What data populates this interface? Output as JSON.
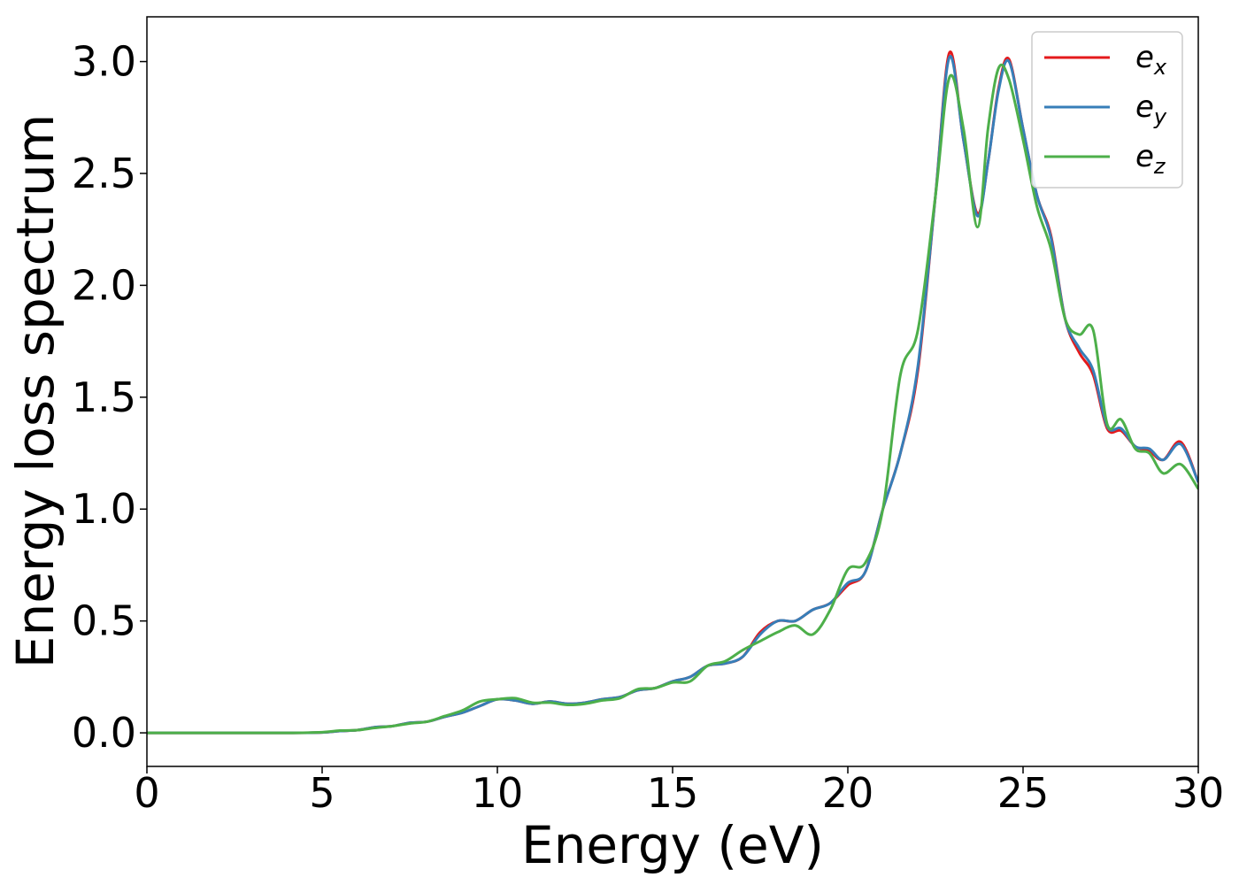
{
  "chart_data": {
    "type": "line",
    "xlabel": "Energy (eV)",
    "ylabel": "Energy loss spectrum",
    "xlim": [
      0,
      30
    ],
    "ylim": [
      -0.15,
      3.2
    ],
    "xticks": [
      0,
      5,
      10,
      15,
      20,
      25,
      30
    ],
    "xtick_labels": [
      "0",
      "5",
      "10",
      "15",
      "20",
      "25",
      "30"
    ],
    "yticks": [
      0.0,
      0.5,
      1.0,
      1.5,
      2.0,
      2.5,
      3.0
    ],
    "ytick_labels": [
      "0.0",
      "0.5",
      "1.0",
      "1.5",
      "2.0",
      "2.5",
      "3.0"
    ],
    "grid": false,
    "legend_position": "top-right",
    "series": [
      {
        "name": "e_x",
        "label_main": "e",
        "label_sub": "x",
        "color": "#e41a1c",
        "x": [
          0,
          2,
          4,
          5,
          5.5,
          6,
          6.5,
          7,
          7.5,
          8,
          8.5,
          9,
          9.5,
          10,
          10.5,
          11,
          11.5,
          12,
          12.5,
          13,
          13.5,
          14,
          14.5,
          15,
          15.5,
          16,
          16.5,
          17,
          17.5,
          18,
          18.5,
          19,
          19.5,
          20,
          20.5,
          21,
          21.5,
          22,
          22.5,
          22.9,
          23.3,
          23.7,
          24,
          24.3,
          24.6,
          25,
          25.4,
          25.8,
          26.2,
          26.6,
          27,
          27.4,
          27.8,
          28.2,
          28.6,
          29,
          29.5,
          30
        ],
        "y": [
          0.0,
          0.0,
          0.0,
          0.002,
          0.008,
          0.012,
          0.025,
          0.03,
          0.045,
          0.05,
          0.072,
          0.09,
          0.12,
          0.15,
          0.145,
          0.13,
          0.14,
          0.13,
          0.135,
          0.15,
          0.16,
          0.19,
          0.2,
          0.23,
          0.25,
          0.3,
          0.31,
          0.34,
          0.45,
          0.5,
          0.5,
          0.55,
          0.58,
          0.66,
          0.72,
          1.0,
          1.25,
          1.62,
          2.4,
          3.04,
          2.65,
          2.32,
          2.55,
          2.88,
          3.01,
          2.7,
          2.4,
          2.22,
          1.85,
          1.7,
          1.6,
          1.36,
          1.35,
          1.28,
          1.26,
          1.22,
          1.3,
          1.12
        ]
      },
      {
        "name": "e_y",
        "label_main": "e",
        "label_sub": "y",
        "color": "#377eb8",
        "x": [
          0,
          2,
          4,
          5,
          5.5,
          6,
          6.5,
          7,
          7.5,
          8,
          8.5,
          9,
          9.5,
          10,
          10.5,
          11,
          11.5,
          12,
          12.5,
          13,
          13.5,
          14,
          14.5,
          15,
          15.5,
          16,
          16.5,
          17,
          17.5,
          18,
          18.5,
          19,
          19.5,
          20,
          20.5,
          21,
          21.5,
          22,
          22.5,
          22.9,
          23.3,
          23.7,
          24,
          24.3,
          24.6,
          25,
          25.4,
          25.8,
          26.2,
          26.6,
          27,
          27.4,
          27.8,
          28.2,
          28.6,
          29,
          29.5,
          30
        ],
        "y": [
          0.0,
          0.0,
          0.0,
          0.002,
          0.008,
          0.012,
          0.025,
          0.03,
          0.045,
          0.05,
          0.072,
          0.09,
          0.12,
          0.15,
          0.145,
          0.13,
          0.14,
          0.13,
          0.135,
          0.15,
          0.16,
          0.19,
          0.2,
          0.23,
          0.25,
          0.3,
          0.31,
          0.34,
          0.44,
          0.5,
          0.5,
          0.55,
          0.58,
          0.67,
          0.72,
          1.0,
          1.25,
          1.64,
          2.4,
          3.02,
          2.65,
          2.31,
          2.55,
          2.87,
          3.0,
          2.7,
          2.4,
          2.21,
          1.85,
          1.72,
          1.62,
          1.37,
          1.36,
          1.28,
          1.27,
          1.22,
          1.29,
          1.12
        ]
      },
      {
        "name": "e_z",
        "label_main": "e",
        "label_sub": "z",
        "color": "#4daf4a",
        "x": [
          0,
          2,
          4,
          5,
          5.5,
          6,
          6.5,
          7,
          7.5,
          8,
          8.5,
          9,
          9.5,
          10,
          10.5,
          11,
          11.5,
          12,
          12.5,
          13,
          13.5,
          14,
          14.5,
          15,
          15.5,
          16,
          16.5,
          17,
          17.5,
          18,
          18.5,
          19,
          19.5,
          20,
          20.5,
          21,
          21.5,
          22,
          22.5,
          22.9,
          23.3,
          23.7,
          24,
          24.3,
          24.6,
          25,
          25.4,
          25.8,
          26.2,
          26.6,
          27,
          27.4,
          27.8,
          28.2,
          28.6,
          29,
          29.5,
          30
        ],
        "y": [
          0.0,
          0.0,
          0.0,
          0.003,
          0.01,
          0.012,
          0.022,
          0.03,
          0.042,
          0.05,
          0.075,
          0.1,
          0.14,
          0.15,
          0.155,
          0.135,
          0.135,
          0.125,
          0.13,
          0.145,
          0.155,
          0.195,
          0.2,
          0.225,
          0.23,
          0.3,
          0.32,
          0.37,
          0.41,
          0.45,
          0.48,
          0.44,
          0.55,
          0.73,
          0.76,
          1.0,
          1.6,
          1.8,
          2.4,
          2.93,
          2.7,
          2.26,
          2.7,
          2.97,
          2.92,
          2.65,
          2.35,
          2.16,
          1.85,
          1.78,
          1.8,
          1.38,
          1.4,
          1.27,
          1.25,
          1.16,
          1.2,
          1.09
        ]
      }
    ]
  }
}
